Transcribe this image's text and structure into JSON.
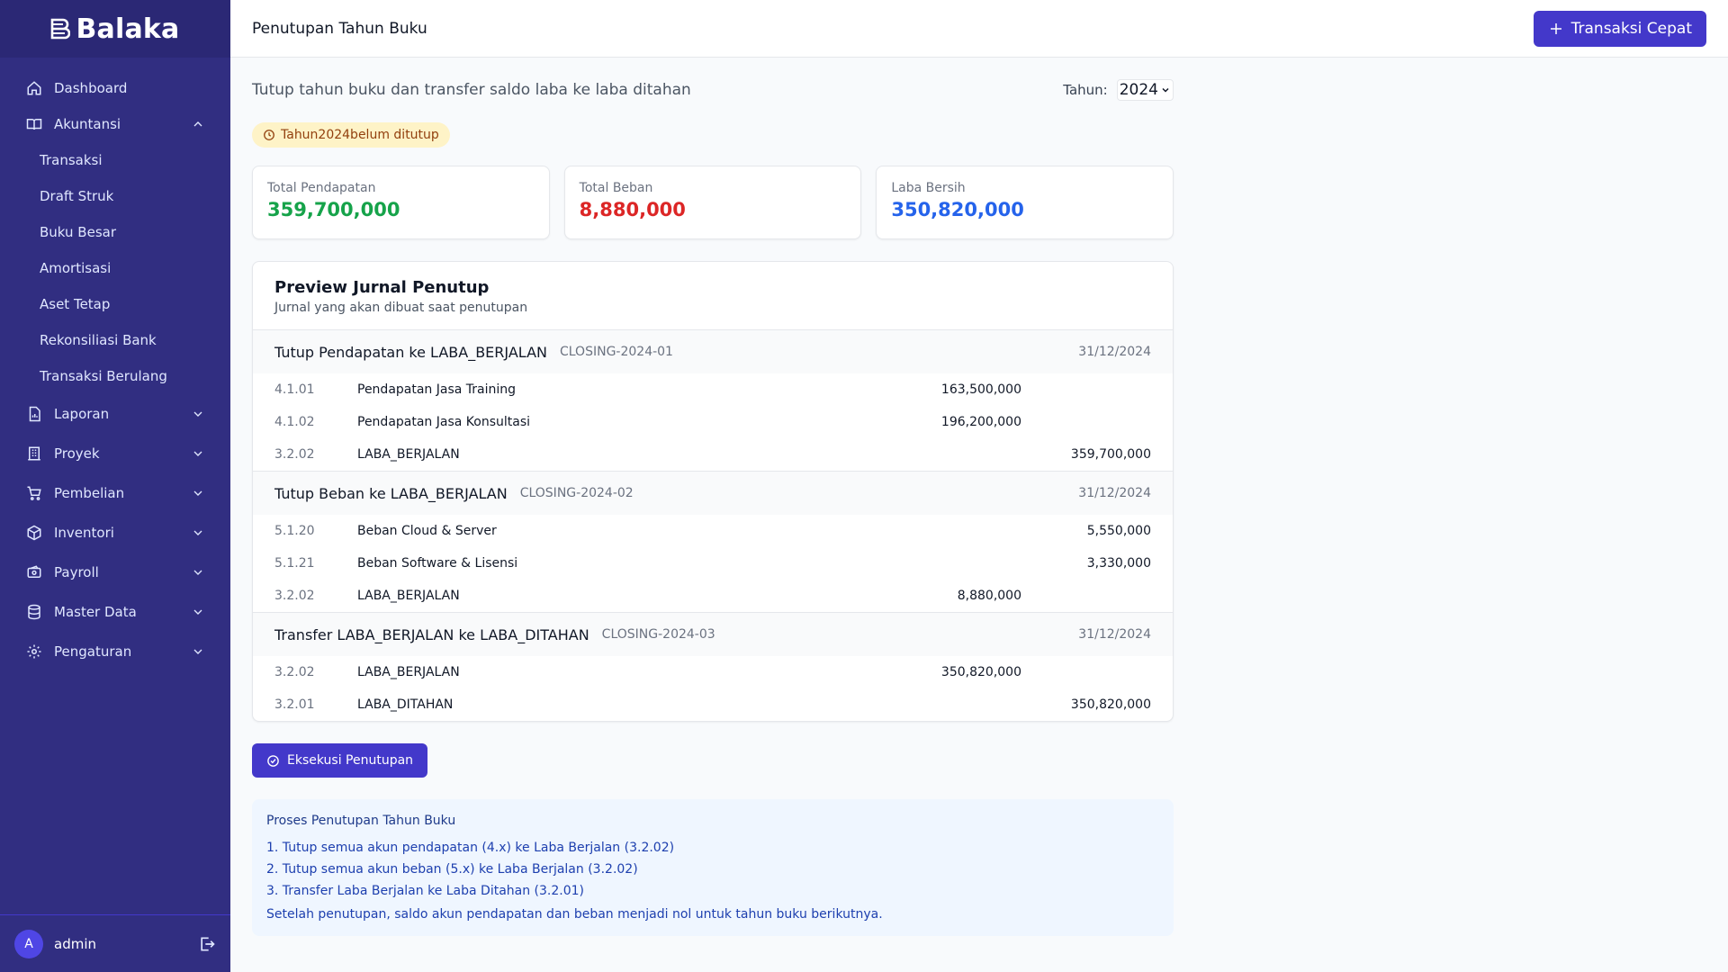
{
  "app": {
    "name": "Balaka"
  },
  "sidebar": {
    "items": [
      {
        "label": "Dashboard",
        "icon": "home-icon"
      },
      {
        "label": "Akuntansi",
        "icon": "book-icon",
        "expanded": true,
        "children": [
          "Transaksi",
          "Draft Struk",
          "Buku Besar",
          "Amortisasi",
          "Aset Tetap",
          "Rekonsiliasi Bank",
          "Transaksi Berulang"
        ]
      },
      {
        "label": "Laporan",
        "icon": "report-icon"
      },
      {
        "label": "Proyek",
        "icon": "building-icon"
      },
      {
        "label": "Pembelian",
        "icon": "cart-icon"
      },
      {
        "label": "Inventori",
        "icon": "box-icon"
      },
      {
        "label": "Payroll",
        "icon": "wallet-icon"
      },
      {
        "label": "Master Data",
        "icon": "database-icon"
      },
      {
        "label": "Pengaturan",
        "icon": "gear-icon"
      }
    ],
    "user": {
      "initial": "A",
      "name": "admin"
    }
  },
  "header": {
    "title": "Penutupan Tahun Buku",
    "quick_button": "Transaksi Cepat"
  },
  "main": {
    "subtitle": "Tutup tahun buku dan transfer saldo laba ke laba ditahan",
    "year_label": "Tahun:",
    "year_value": "2024",
    "status_badge": "Tahun2024belum ditutup",
    "cards": [
      {
        "label": "Total Pendapatan",
        "value": "359,700,000",
        "color": "#16a34a"
      },
      {
        "label": "Total Beban",
        "value": "8,880,000",
        "color": "#dc2626"
      },
      {
        "label": "Laba Bersih",
        "value": "350,820,000",
        "color": "#2563eb"
      }
    ],
    "preview": {
      "title": "Preview Jurnal Penutup",
      "subtitle": "Jurnal yang akan dibuat saat penutupan",
      "entries": [
        {
          "title": "Tutup Pendapatan ke LABA_BERJALAN",
          "ref": "CLOSING-2024-01",
          "date": "31/12/2024",
          "lines": [
            {
              "code": "4.1.01",
              "name": "Pendapatan Jasa Training",
              "debit": "163,500,000",
              "credit": ""
            },
            {
              "code": "4.1.02",
              "name": "Pendapatan Jasa Konsultasi",
              "debit": "196,200,000",
              "credit": ""
            },
            {
              "code": "3.2.02",
              "name": "LABA_BERJALAN",
              "debit": "",
              "credit": "359,700,000"
            }
          ]
        },
        {
          "title": "Tutup Beban ke LABA_BERJALAN",
          "ref": "CLOSING-2024-02",
          "date": "31/12/2024",
          "lines": [
            {
              "code": "5.1.20",
              "name": "Beban Cloud & Server",
              "debit": "",
              "credit": "5,550,000"
            },
            {
              "code": "5.1.21",
              "name": "Beban Software & Lisensi",
              "debit": "",
              "credit": "3,330,000"
            },
            {
              "code": "3.2.02",
              "name": "LABA_BERJALAN",
              "debit": "8,880,000",
              "credit": ""
            }
          ]
        },
        {
          "title": "Transfer LABA_BERJALAN ke LABA_DITAHAN",
          "ref": "CLOSING-2024-03",
          "date": "31/12/2024",
          "lines": [
            {
              "code": "3.2.02",
              "name": "LABA_BERJALAN",
              "debit": "350,820,000",
              "credit": ""
            },
            {
              "code": "3.2.01",
              "name": "LABA_DITAHAN",
              "debit": "",
              "credit": "350,820,000"
            }
          ]
        }
      ]
    },
    "execute_button": "Eksekusi Penutupan",
    "info": {
      "title": "Proses Penutupan Tahun Buku",
      "steps": [
        "1. Tutup semua akun pendapatan (4.x) ke Laba Berjalan (3.2.02)",
        "2. Tutup semua akun beban (5.x) ke Laba Berjalan (3.2.02)",
        "3. Transfer Laba Berjalan ke Laba Ditahan (3.2.01)"
      ],
      "note": "Setelah penutupan, saldo akun pendapatan dan beban menjadi nol untuk tahun buku berikutnya."
    }
  },
  "colors": {
    "sidebar_bg": "#312e81",
    "primary": "#4338ca",
    "badge_bg": "#fef3c7",
    "info_bg": "#eff6ff"
  }
}
